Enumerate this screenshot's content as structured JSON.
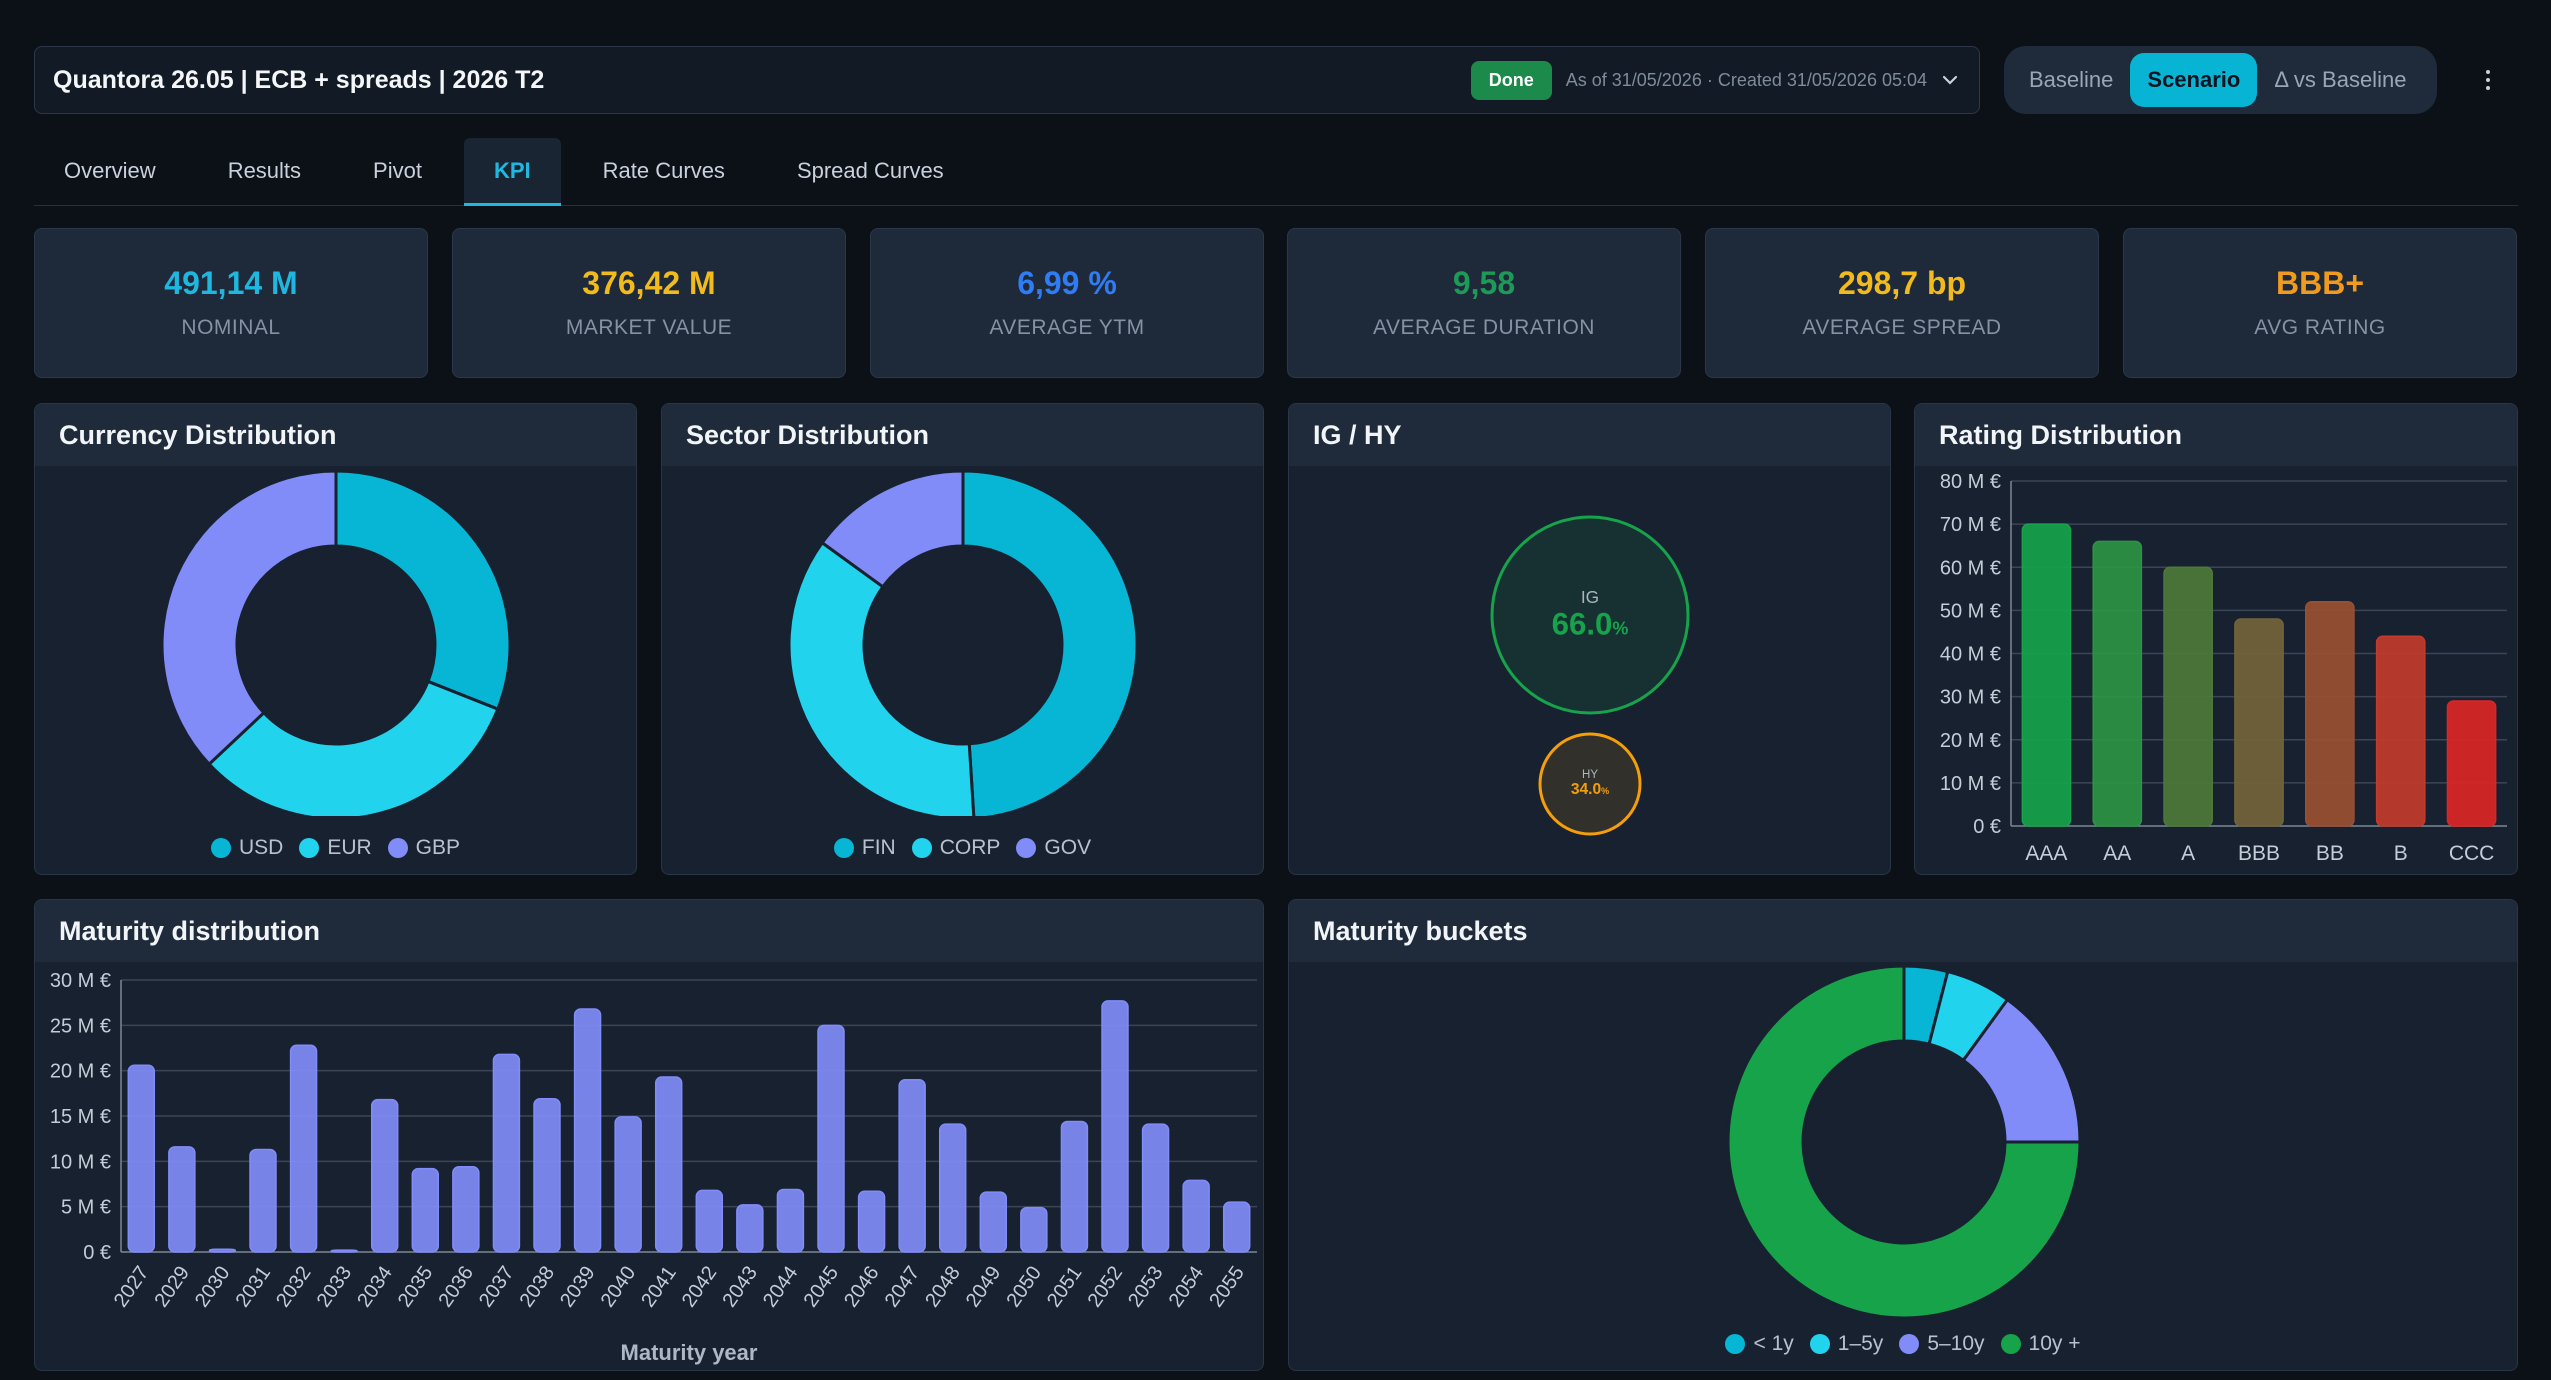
{
  "header": {
    "title": "Quantora 26.05 | ECB + spreads | 2026 T2",
    "status": "Done",
    "as_of": "As of 31/05/2026 · Created 31/05/2026 05:04"
  },
  "view_toggle": {
    "options": [
      "Baseline",
      "Scenario",
      "Δ vs Baseline"
    ],
    "selected": "Scenario"
  },
  "tabs": [
    "Overview",
    "Results",
    "Pivot",
    "KPI",
    "Rate Curves",
    "Spread Curves"
  ],
  "active_tab": "KPI",
  "kpis": [
    {
      "value": "491,14 M",
      "label": "NOMINAL",
      "color": "#1fb7e0"
    },
    {
      "value": "376,42 M",
      "label": "MARKET VALUE",
      "color": "#f2bb1d"
    },
    {
      "value": "6,99 %",
      "label": "AVERAGE YTM",
      "color": "#2f7cf5"
    },
    {
      "value": "9,58",
      "label": "AVERAGE DURATION",
      "color": "#1d9a57"
    },
    {
      "value": "298,7 bp",
      "label": "AVERAGE SPREAD",
      "color": "#f2bb1d"
    },
    {
      "value": "BBB+",
      "label": "AVG RATING",
      "color": "#f09a1e"
    }
  ],
  "panels": {
    "currency": "Currency Distribution",
    "sector": "Sector Distribution",
    "ighy": "IG / HY",
    "rating": "Rating Distribution",
    "maturity": "Maturity distribution",
    "buckets": "Maturity buckets"
  },
  "chart_data": [
    {
      "type": "pie",
      "title": "Currency Distribution",
      "categories": [
        "USD",
        "EUR",
        "GBP"
      ],
      "values": [
        31,
        32,
        37
      ],
      "colors": [
        "#06b6d4",
        "#22d3ee",
        "#818cf8"
      ]
    },
    {
      "type": "pie",
      "title": "Sector Distribution",
      "categories": [
        "FIN",
        "CORP",
        "GOV"
      ],
      "values": [
        49,
        36,
        15
      ],
      "colors": [
        "#06b6d4",
        "#22d3ee",
        "#818cf8"
      ]
    },
    {
      "type": "bubble",
      "title": "IG / HY",
      "categories": [
        "IG",
        "HY"
      ],
      "values": [
        66.0,
        34.0
      ],
      "unit": "%",
      "colors": [
        "#16a34a",
        "#f59e0b"
      ]
    },
    {
      "type": "bar",
      "title": "Rating Distribution",
      "categories": [
        "AAA",
        "AA",
        "A",
        "BBB",
        "BB",
        "B",
        "CCC"
      ],
      "values": [
        70,
        66,
        60,
        48,
        52,
        44,
        29
      ],
      "colors": [
        "#16a34a",
        "#2e9444",
        "#4d7a3a",
        "#73643a",
        "#9a5032",
        "#c23b2c",
        "#dc2626"
      ],
      "ylim": [
        0,
        80
      ],
      "yticks": [
        "0 €",
        "10 M €",
        "20 M €",
        "30 M €",
        "40 M €",
        "50 M €",
        "60 M €",
        "70 M €",
        "80 M €"
      ]
    },
    {
      "type": "bar",
      "title": "Maturity distribution",
      "xlabel": "Maturity year",
      "categories": [
        "2027",
        "2029",
        "2030",
        "2031",
        "2032",
        "2033",
        "2034",
        "2035",
        "2036",
        "2037",
        "2038",
        "2039",
        "2040",
        "2041",
        "2042",
        "2043",
        "2044",
        "2045",
        "2046",
        "2047",
        "2048",
        "2049",
        "2050",
        "2051",
        "2052",
        "2053",
        "2054",
        "2055"
      ],
      "values": [
        20.6,
        11.6,
        0.3,
        11.3,
        22.8,
        0.2,
        16.8,
        9.2,
        9.4,
        21.8,
        16.9,
        26.8,
        14.9,
        19.3,
        6.8,
        5.2,
        6.9,
        25.0,
        6.7,
        19.0,
        14.1,
        6.6,
        4.9,
        14.4,
        27.7,
        14.1,
        7.9,
        5.5
      ],
      "color": "#818cf8",
      "ylim": [
        0,
        30
      ],
      "yticks": [
        "0 €",
        "5 M €",
        "10 M €",
        "15 M €",
        "20 M €",
        "25 M €",
        "30 M €"
      ]
    },
    {
      "type": "pie",
      "title": "Maturity buckets",
      "categories": [
        "< 1y",
        "1–5y",
        "5–10y",
        "10y +"
      ],
      "values": [
        4,
        6,
        15,
        75
      ],
      "colors": [
        "#06b6d4",
        "#22d3ee",
        "#818cf8",
        "#16a34a"
      ]
    }
  ]
}
